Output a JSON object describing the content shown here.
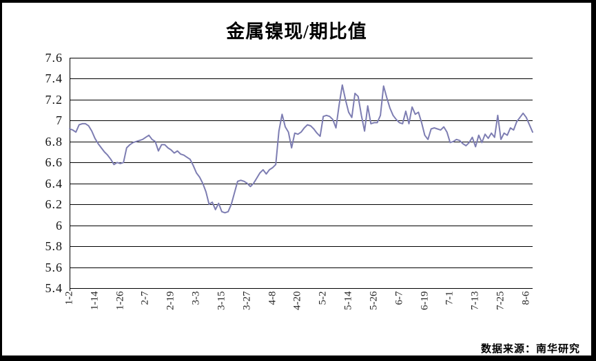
{
  "chart_data": {
    "type": "line",
    "title": "金属镍现/期比值",
    "source_note": "数据来源：南华研究",
    "legend": "none",
    "grid": "horizontal",
    "line_color": "#7d7db2",
    "grid_color": "#000000",
    "background_color": "#ffffff",
    "ylim": [
      5.4,
      7.6
    ],
    "y_tick_values": [
      7.6,
      7.4,
      7.2,
      7.0,
      6.8,
      6.6,
      6.4,
      6.2,
      6.0,
      5.8,
      5.6,
      5.4
    ],
    "y_tick_labels": [
      "7.6",
      "7.4",
      "7.2",
      "7",
      "6.8",
      "6.6",
      "6.4",
      "6.2",
      "6",
      "5.8",
      "5.6",
      "5.4"
    ],
    "x_labels": [
      "1-2",
      "1-14",
      "1-26",
      "2-7",
      "2-19",
      "3-3",
      "3-15",
      "3-27",
      "4-8",
      "4-20",
      "5-2",
      "5-14",
      "5-26",
      "6-7",
      "6-19",
      "7-1",
      "7-13",
      "7-25",
      "8-6"
    ],
    "x_label_every": 8,
    "series_values": [
      6.92,
      6.91,
      6.89,
      6.96,
      6.97,
      6.97,
      6.95,
      6.9,
      6.83,
      6.78,
      6.74,
      6.7,
      6.67,
      6.63,
      6.58,
      6.6,
      6.59,
      6.6,
      6.74,
      6.77,
      6.79,
      6.8,
      6.81,
      6.82,
      6.84,
      6.86,
      6.82,
      6.8,
      6.71,
      6.77,
      6.77,
      6.74,
      6.72,
      6.69,
      6.71,
      6.68,
      6.67,
      6.65,
      6.63,
      6.57,
      6.5,
      6.46,
      6.4,
      6.32,
      6.2,
      6.22,
      6.15,
      6.21,
      6.13,
      6.12,
      6.13,
      6.2,
      6.31,
      6.42,
      6.43,
      6.42,
      6.4,
      6.37,
      6.4,
      6.45,
      6.5,
      6.53,
      6.49,
      6.53,
      6.55,
      6.58,
      6.9,
      7.06,
      6.94,
      6.89,
      6.74,
      6.88,
      6.87,
      6.89,
      6.93,
      6.96,
      6.95,
      6.92,
      6.88,
      6.85,
      7.04,
      7.05,
      7.04,
      7.01,
      6.93,
      7.15,
      7.34,
      7.2,
      7.08,
      7.03,
      7.26,
      7.23,
      7.05,
      6.9,
      7.14,
      6.97,
      6.98,
      6.98,
      7.05,
      7.33,
      7.22,
      7.12,
      7.05,
      7.01,
      6.98,
      6.97,
      7.09,
      6.97,
      7.13,
      7.06,
      7.08,
      6.98,
      6.86,
      6.82,
      6.92,
      6.93,
      6.92,
      6.91,
      6.94,
      6.89,
      6.79,
      6.8,
      6.82,
      6.81,
      6.78,
      6.76,
      6.79,
      6.84,
      6.75,
      6.86,
      6.79,
      6.87,
      6.83,
      6.88,
      6.84,
      7.05,
      6.82,
      6.88,
      6.86,
      6.93,
      6.91,
      6.99,
      7.03,
      7.07,
      7.03,
      6.96,
      6.89
    ]
  }
}
